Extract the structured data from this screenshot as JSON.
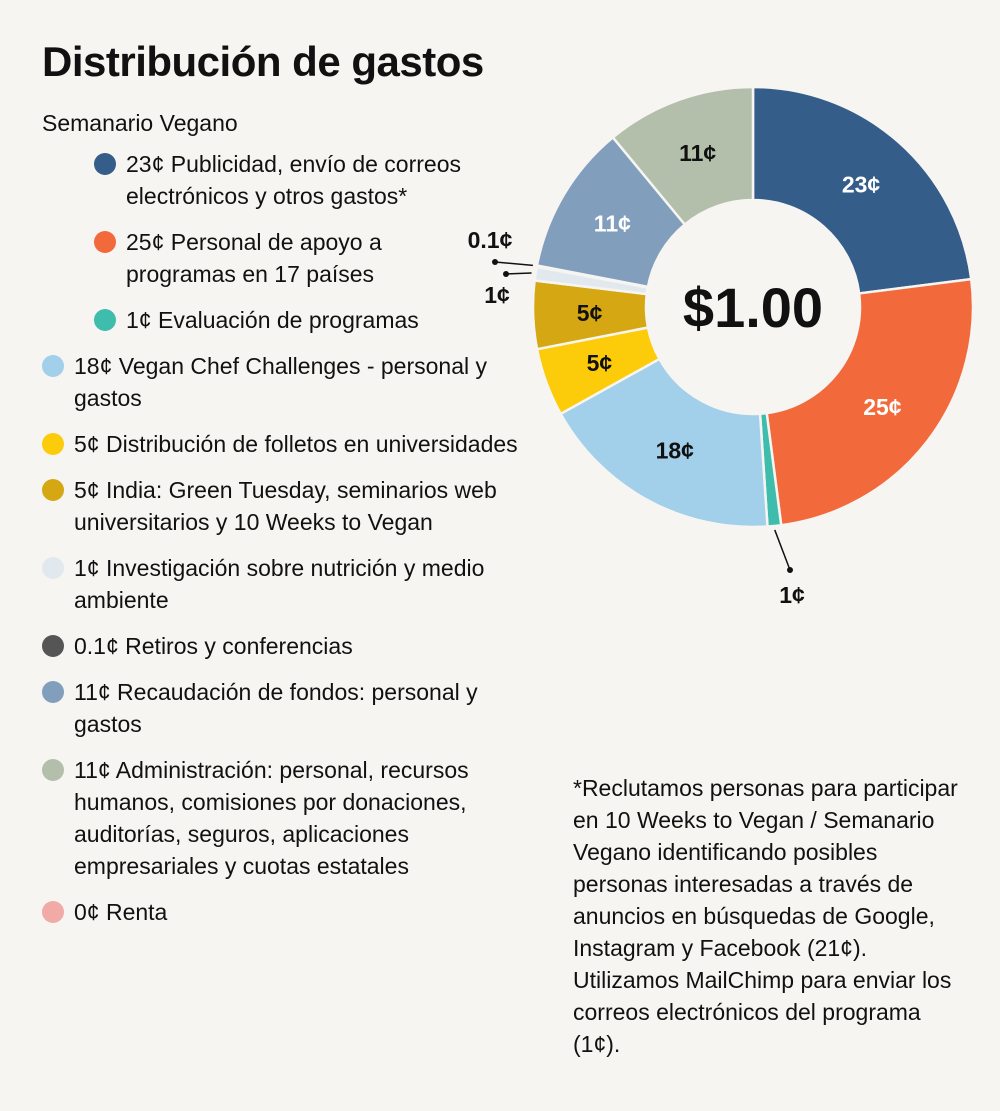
{
  "title": "Distribución de gastos",
  "group_label": "Semanario Vegano",
  "legend": [
    {
      "text": "23¢ Publicidad, envío de correos electrónicos y otros gastos*",
      "color": "#345d8a",
      "indent": true
    },
    {
      "text": "25¢ Personal de apoyo a programas en 17 países",
      "color": "#f26a3b",
      "indent": true
    },
    {
      "text": "1¢ Evaluación de programas",
      "color": "#3ebdad",
      "indent": true
    },
    {
      "text": "18¢ Vegan Chef Challenges - personal y gastos",
      "color": "#a2cfe9",
      "indent": false
    },
    {
      "text": "5¢ Distribución de folletos en universidades",
      "color": "#fccc0a",
      "indent": false
    },
    {
      "text": "5¢ India: Green Tuesday, seminarios web universitarios y 10 Weeks to Vegan",
      "color": "#d5a813",
      "indent": false
    },
    {
      "text": "1¢ Investigación sobre nutrición y medio ambiente",
      "color": "#e1e9ef",
      "indent": false
    },
    {
      "text": "0.1¢ Retiros y conferencias",
      "color": "#555555",
      "indent": false
    },
    {
      "text": "11¢ Recaudación de fondos: personal y gastos",
      "color": "#819fbd",
      "indent": false
    },
    {
      "text": "11¢ Administración: personal, recursos humanos, comisiones por donaciones, auditorías, seguros, aplicaciones empresariales y cuotas estatales",
      "color": "#b3bfab",
      "indent": false
    },
    {
      "text": "0¢ Renta",
      "color": "#f2aaa6",
      "indent": false
    }
  ],
  "chart_data": {
    "type": "pie",
    "center_label": "$1.00",
    "slices": [
      {
        "label": "23¢",
        "value": 23,
        "color": "#345d8a",
        "label_color": "#ffffff"
      },
      {
        "label": "25¢",
        "value": 25,
        "color": "#f26a3b",
        "label_color": "#ffffff"
      },
      {
        "label": "1¢",
        "value": 1,
        "color": "#3ebdad",
        "label_color": "#111111",
        "callout": true
      },
      {
        "label": "18¢",
        "value": 18,
        "color": "#a2cfe9",
        "label_color": "#111111"
      },
      {
        "label": "5¢",
        "value": 5,
        "color": "#fccc0a",
        "label_color": "#111111"
      },
      {
        "label": "5¢",
        "value": 5,
        "color": "#d5a813",
        "label_color": "#111111"
      },
      {
        "label": "1¢",
        "value": 1,
        "color": "#e1e9ef",
        "label_color": "#111111",
        "callout": true
      },
      {
        "label": "0.1¢",
        "value": 0.1,
        "color": "#555555",
        "label_color": "#111111",
        "callout": true
      },
      {
        "label": "11¢",
        "value": 11,
        "color": "#819fbd",
        "label_color": "#ffffff"
      },
      {
        "label": "11¢",
        "value": 11,
        "color": "#b3bfab",
        "label_color": "#111111"
      }
    ]
  },
  "footnote": "*Reclutamos personas para participar en 10 Weeks to Vegan / Semanario Vegano identificando posibles personas interesadas a través de anuncios en búsquedas de Google, Instagram y Facebook (21¢). Utilizamos MailChimp para enviar los correos electrónicos del programa (1¢)."
}
